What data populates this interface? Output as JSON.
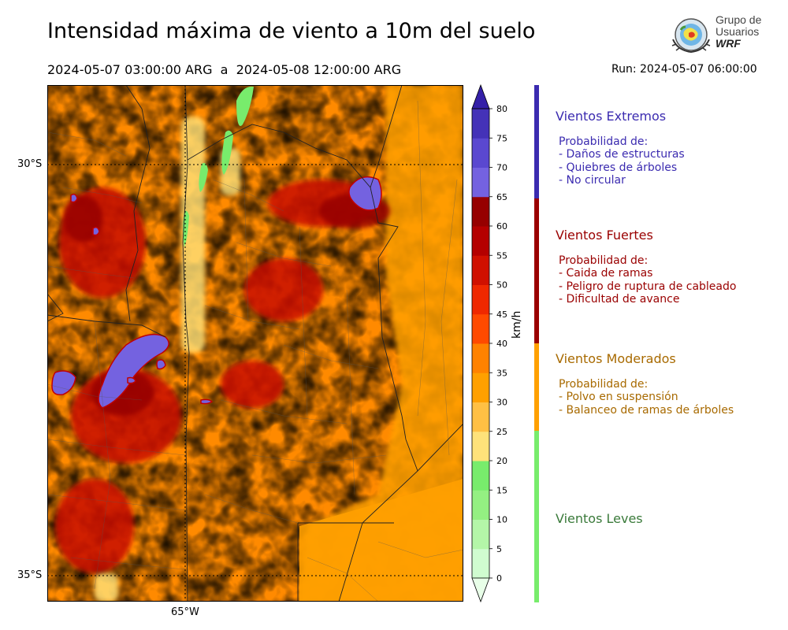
{
  "title": "Intensidad máxima de viento a 10m del suelo",
  "period": "2024-05-07 03:00:00 ARG  a  2024-05-08 12:00:00 ARG",
  "run": "Run: 2024-05-07 06:00:00",
  "logo": {
    "line1": "Grupo de",
    "line2": "Usuarios",
    "line3": "WRF"
  },
  "map": {
    "lat_labels": [
      "30°S",
      "35°S"
    ],
    "lon_labels": [
      "65°W"
    ]
  },
  "colorbar": {
    "unit": "km/h",
    "ticks": [
      "0",
      "5",
      "10",
      "15",
      "20",
      "25",
      "30",
      "35",
      "40",
      "45",
      "50",
      "55",
      "60",
      "65",
      "70",
      "75",
      "80"
    ],
    "colors": [
      "#e8ffe8",
      "#d0fcd0",
      "#b4f6a8",
      "#94f082",
      "#78ec6c",
      "#fee27a",
      "#ffc044",
      "#ffa000",
      "#ff8200",
      "#ff4a00",
      "#ef2800",
      "#d01000",
      "#b40000",
      "#960000",
      "#7462e0",
      "#5a48d0",
      "#4432b8",
      "#3420a8"
    ]
  },
  "categories": [
    {
      "title": "Vientos Extremos",
      "color": "#3b2bb0",
      "lines": [
        "Probabilidad de:",
        "- Daños de estructuras",
        "- Quiebres de árboles",
        "- No circular"
      ]
    },
    {
      "title": "Vientos Fuertes",
      "color": "#9a0000",
      "lines": [
        "Probabilidad de:",
        "- Caida de ramas",
        "- Peligro de ruptura de cableado",
        "- Dificultad de avance"
      ]
    },
    {
      "title": "Vientos Moderados",
      "color": "#a86a00",
      "bar_color": "#ffa000",
      "lines": [
        "Probabilidad de:",
        "- Polvo en suspensión",
        "- Balanceo de ramas de árboles"
      ]
    },
    {
      "title": "Vientos Leves",
      "color": "#3a7a3a",
      "bar_color": "#78ec6c",
      "lines": []
    }
  ]
}
